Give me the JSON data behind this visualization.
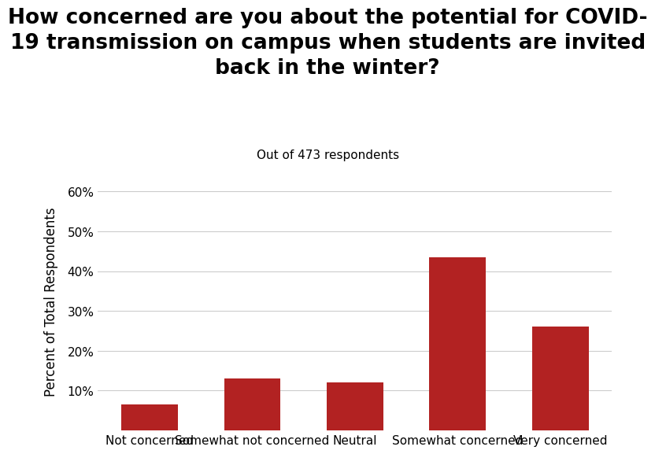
{
  "categories": [
    "Not concerned",
    "Somewhat not concerned",
    "Neutral",
    "Somewhat concerned",
    "Very concerned"
  ],
  "values": [
    6.5,
    13.0,
    12.0,
    43.5,
    26.0
  ],
  "bar_color": "#b22222",
  "title": "How concerned are you about the potential for COVID-\n19 transmission on campus when students are invited\nback in the winter?",
  "subtitle": "Out of 473 respondents",
  "ylabel": "Percent of Total Respondents",
  "ylim": [
    0,
    65
  ],
  "yticks": [
    10,
    20,
    30,
    40,
    50,
    60
  ],
  "background_color": "#ffffff",
  "grid_color": "#cccccc",
  "title_fontsize": 19,
  "subtitle_fontsize": 11,
  "ylabel_fontsize": 12,
  "tick_fontsize": 11
}
